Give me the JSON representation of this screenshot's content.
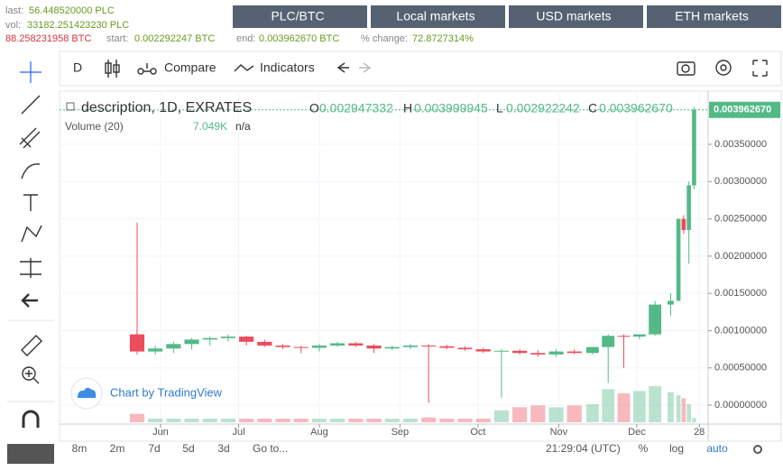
{
  "header": {
    "last_label": "last:",
    "last": "56.448520000 PLC",
    "vol_label": "vol:",
    "vol": "33182.251423230 PLC",
    "vol_btc": "88.258231958 BTC",
    "start_label": "start:",
    "start": "0.002292247 BTC",
    "end_label": "end:",
    "end": "0.003962670 BTC",
    "change_label": "% change:",
    "change": "72.8727314%"
  },
  "menu": [
    "PLC/BTC",
    "Local markets",
    "USD markets",
    "ETH markets"
  ],
  "toolbar": {
    "interval": "D",
    "compare": "Compare",
    "indicators": "Indicators"
  },
  "legend": {
    "title": "description, 1D, EXRATES",
    "o": "O",
    "o_val": "0.002947332",
    "h": "H",
    "h_val": "0.003999945",
    "l": "L",
    "l_val": "0.002922242",
    "c": "C",
    "c_val": "0.003962670",
    "volume": "Volume (20)",
    "volume_val": "7.049K",
    "volume_na": "n/a"
  },
  "branding": "Chart by TradingView",
  "bottom": {
    "ranges": [
      "8m",
      "2m",
      "7d",
      "5d",
      "3d"
    ],
    "goto": "Go to...",
    "time": "21:29:04 (UTC)",
    "percent": "%",
    "log": "log",
    "auto": "auto"
  },
  "chart_data": {
    "type": "candlestick",
    "up_color": "#53b987",
    "down_color": "#eb4d5c",
    "grid": true,
    "x": [
      -9,
      -2,
      5,
      12,
      19,
      26,
      33,
      40,
      47,
      54,
      61,
      68,
      75,
      82,
      89,
      96,
      103,
      110,
      117,
      124,
      131,
      138,
      145,
      152,
      159,
      166,
      172,
      178,
      184,
      190,
      196,
      199,
      201,
      203,
      205
    ],
    "open": [
      0.00095,
      0.00072,
      0.00076,
      0.00082,
      0.00088,
      0.0009,
      0.00092,
      0.00085,
      0.0008,
      0.00078,
      0.00077,
      0.0008,
      0.00083,
      0.0008,
      0.00076,
      0.00078,
      0.0008,
      0.00079,
      0.00077,
      0.00075,
      0.00072,
      0.00073,
      0.0007,
      0.00068,
      0.00072,
      0.0007,
      0.00078,
      0.00093,
      0.00092,
      0.00095,
      0.00135,
      0.0014,
      0.0025,
      0.00235,
      0.00295
    ],
    "high": [
      0.00245,
      0.0008,
      0.00085,
      0.0009,
      0.00092,
      0.00095,
      0.00093,
      0.00088,
      0.00082,
      0.0008,
      0.00082,
      0.00085,
      0.00085,
      0.00082,
      0.0008,
      0.00082,
      0.00082,
      0.00081,
      0.00079,
      0.00077,
      0.00075,
      0.00075,
      0.00074,
      0.00075,
      0.00075,
      0.00078,
      0.00095,
      0.00095,
      0.00095,
      0.0014,
      0.0015,
      0.0025,
      0.00255,
      0.003,
      0.004
    ],
    "low": [
      0.00068,
      0.00068,
      0.0007,
      0.00075,
      0.0008,
      0.00085,
      0.0008,
      0.00078,
      0.00075,
      0.0007,
      0.00072,
      0.00078,
      0.00078,
      0.0007,
      0.00074,
      0.00075,
      3e-05,
      0.00075,
      0.00073,
      0.0007,
      0.0001,
      0.00068,
      0.00065,
      0.00065,
      0.00068,
      0.00068,
      0.0003,
      0.0005,
      0.00088,
      0.00093,
      0.0012,
      0.0014,
      0.0023,
      0.0019,
      0.0029
    ],
    "close": [
      0.00072,
      0.00076,
      0.00082,
      0.00088,
      0.0009,
      0.00092,
      0.00085,
      0.0008,
      0.00078,
      0.00077,
      0.0008,
      0.00083,
      0.0008,
      0.00076,
      0.00078,
      0.0008,
      0.00079,
      0.00077,
      0.00075,
      0.00072,
      0.00073,
      0.0007,
      0.00068,
      0.00072,
      0.0007,
      0.00078,
      0.00093,
      0.00092,
      0.00095,
      0.00135,
      0.0014,
      0.0025,
      0.00235,
      0.00295,
      0.00396267
    ],
    "volume": [
      14,
      6,
      6,
      6,
      6,
      6,
      6,
      6,
      6,
      6,
      6,
      6,
      6,
      6,
      6,
      6,
      8,
      6,
      6,
      6,
      20,
      25,
      28,
      25,
      28,
      30,
      55,
      48,
      52,
      60,
      50,
      45,
      40,
      30,
      7.049
    ],
    "xlim": [
      -38.8,
      210.4
    ],
    "xticks": [
      {
        "value": 0,
        "label": "Jun"
      },
      {
        "value": 30,
        "label": "Jul"
      },
      {
        "value": 61,
        "label": "Aug"
      },
      {
        "value": 92,
        "label": "Sep"
      },
      {
        "value": 122,
        "label": "Oct"
      },
      {
        "value": 153,
        "label": "Nov"
      },
      {
        "value": 183,
        "label": "Dec"
      },
      {
        "value": 207,
        "label": "28"
      }
    ],
    "ylim": [
      -0.000254,
      0.00419
    ],
    "yticks": [
      {
        "value": 0,
        "label": "0.00000000"
      },
      {
        "value": 0.0005,
        "label": "0.00050000"
      },
      {
        "value": 0.001,
        "label": "0.00100000"
      },
      {
        "value": 0.0015,
        "label": "0.00150000"
      },
      {
        "value": 0.002,
        "label": "0.00200000"
      },
      {
        "value": 0.0025,
        "label": "0.00250000"
      },
      {
        "value": 0.003,
        "label": "0.00300000"
      },
      {
        "value": 0.0035,
        "label": "0.00350000"
      }
    ],
    "last_price": {
      "value": 0.00396267,
      "label": "0.003962670"
    }
  }
}
